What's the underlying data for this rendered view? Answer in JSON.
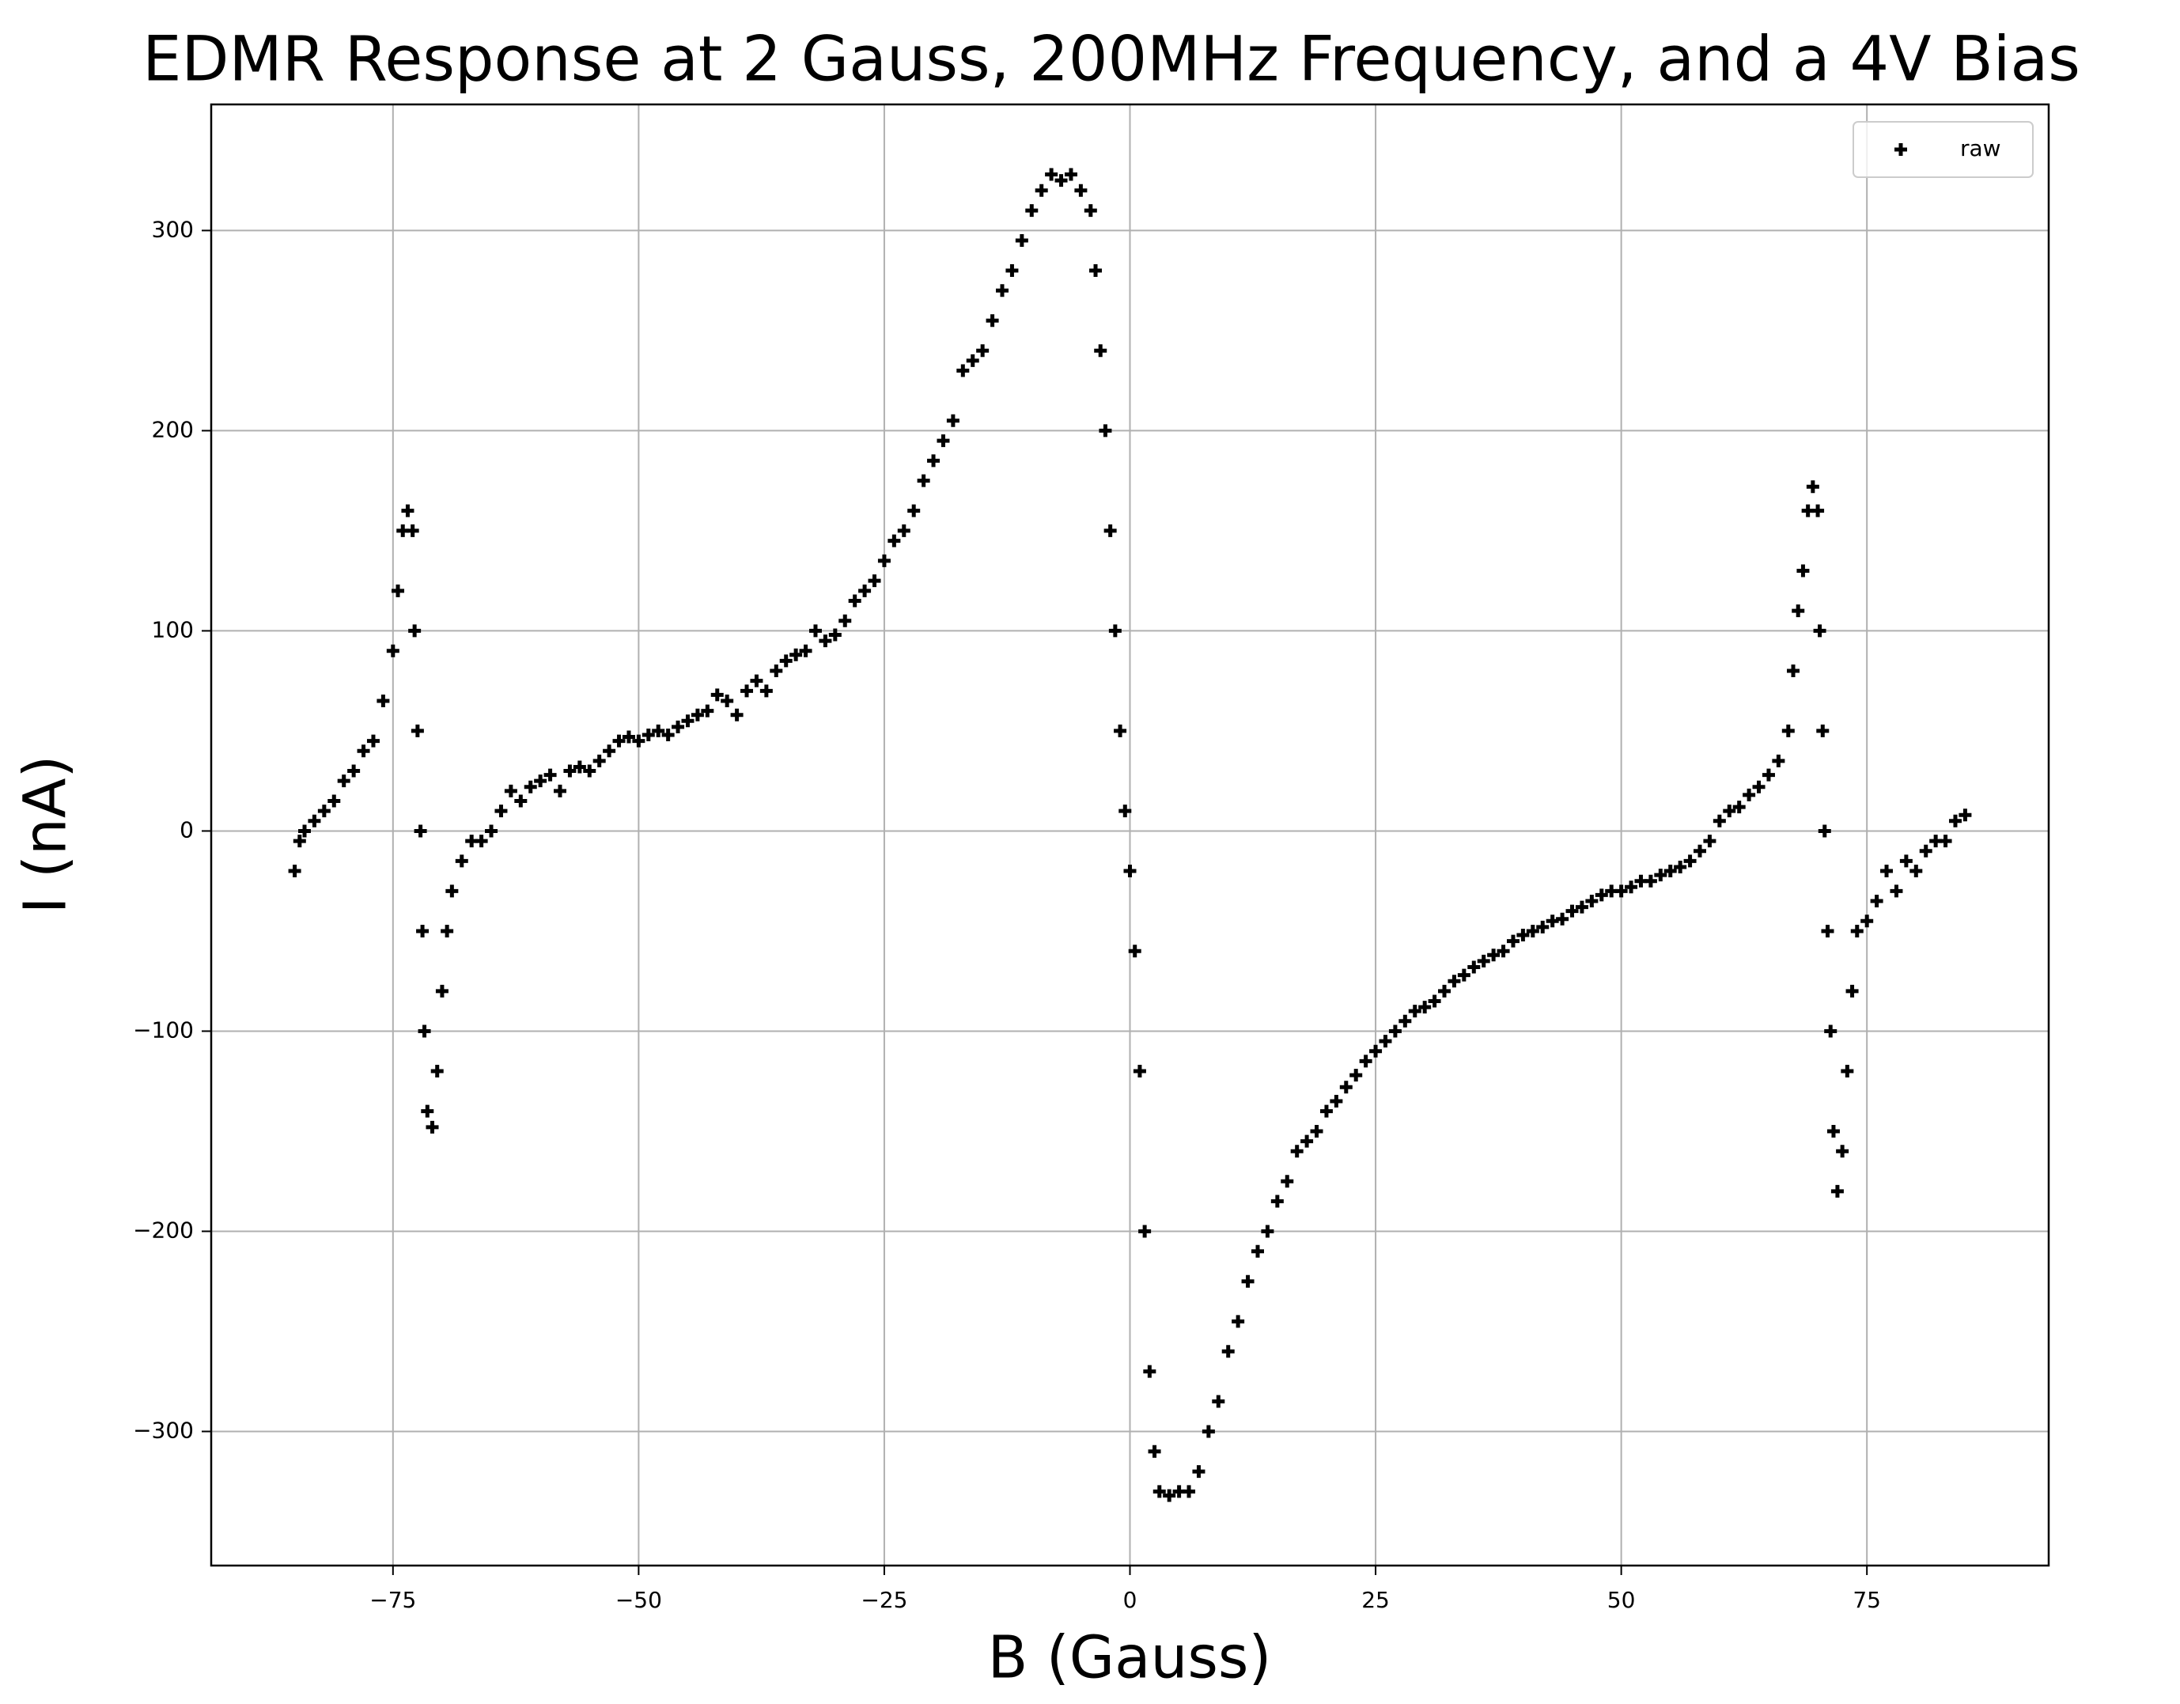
{
  "chart_data": {
    "type": "scatter",
    "title": "EDMR Response at 2 Gauss, 200MHz Frequency, and a 4V Bias",
    "x_label": "B (Gauss)",
    "y_label": "I (nA)",
    "xlim": [
      -93.5,
      93.5
    ],
    "ylim": [
      -367,
      363
    ],
    "xticks": [
      {
        "value": -75,
        "label": "−75"
      },
      {
        "value": -50,
        "label": "−50"
      },
      {
        "value": -25,
        "label": "−25"
      },
      0,
      25,
      50,
      75
    ],
    "yticks": [
      {
        "value": -300,
        "label": "−300"
      },
      {
        "value": -200,
        "label": "−200"
      },
      {
        "value": -100,
        "label": "−100"
      },
      0,
      100,
      200,
      300
    ],
    "grid": true,
    "legend": "upper right",
    "marker": "plus",
    "series": [
      {
        "name": "raw",
        "color": "#000000",
        "x": [
          -85,
          -84.5,
          -84,
          -83,
          -82,
          -81,
          -80,
          -79,
          -78,
          -77,
          -76,
          -75,
          -74.5,
          -74,
          -73.5,
          -73,
          -72.8,
          -72.5,
          -72.2,
          -72,
          -71.8,
          -71.5,
          -71,
          -70.5,
          -70,
          -69.5,
          -69,
          -68,
          -67,
          -66,
          -65,
          -64,
          -63,
          -62,
          -61,
          -60,
          -59,
          -58,
          -57,
          -56,
          -55,
          -54,
          -53,
          -52,
          -51,
          -50,
          -49,
          -48,
          -47,
          -46,
          -45,
          -44,
          -43,
          -42,
          -41,
          -40,
          -39,
          -38,
          -37,
          -36,
          -35,
          -34,
          -33,
          -32,
          -31,
          -30,
          -29,
          -28,
          -27,
          -26,
          -25,
          -24,
          -23,
          -22,
          -21,
          -20,
          -19,
          -18,
          -17,
          -16,
          -15,
          -14,
          -13,
          -12,
          -11,
          -10,
          -9,
          -8,
          -7,
          -6,
          -5,
          -4,
          -3.5,
          -3,
          -2.5,
          -2,
          -1.5,
          -1,
          -0.5,
          0,
          0.5,
          1,
          1.5,
          2,
          2.5,
          3,
          4,
          5,
          6,
          7,
          8,
          9,
          10,
          11,
          12,
          13,
          14,
          15,
          16,
          17,
          18,
          19,
          20,
          21,
          22,
          23,
          24,
          25,
          26,
          27,
          28,
          29,
          30,
          31,
          32,
          33,
          34,
          35,
          36,
          37,
          38,
          39,
          40,
          41,
          42,
          43,
          44,
          45,
          46,
          47,
          48,
          49,
          50,
          51,
          52,
          53,
          54,
          55,
          56,
          57,
          58,
          59,
          60,
          61,
          62,
          63,
          64,
          65,
          66,
          67,
          67.5,
          68,
          68.5,
          69,
          69.5,
          70,
          70.2,
          70.5,
          70.7,
          71,
          71.3,
          71.6,
          72,
          72.5,
          73,
          73.5,
          74,
          75,
          76,
          77,
          78,
          79,
          80,
          81,
          82,
          83,
          84,
          85
        ],
        "values": [
          -20,
          -5,
          0,
          5,
          10,
          15,
          25,
          30,
          40,
          45,
          65,
          90,
          120,
          150,
          160,
          150,
          100,
          50,
          0,
          -50,
          -100,
          -140,
          -148,
          -120,
          -80,
          -50,
          -30,
          -15,
          -5,
          -5,
          0,
          10,
          20,
          15,
          22,
          25,
          28,
          20,
          30,
          32,
          30,
          35,
          40,
          45,
          47,
          45,
          48,
          50,
          48,
          52,
          55,
          58,
          60,
          68,
          65,
          58,
          70,
          75,
          70,
          80,
          85,
          88,
          90,
          100,
          95,
          98,
          105,
          115,
          120,
          125,
          135,
          145,
          150,
          160,
          175,
          185,
          195,
          205,
          230,
          235,
          240,
          255,
          270,
          280,
          295,
          310,
          320,
          328,
          325,
          328,
          320,
          310,
          280,
          240,
          200,
          150,
          100,
          50,
          10,
          -20,
          -60,
          -120,
          -200,
          -270,
          -310,
          -330,
          -332,
          -330,
          -330,
          -320,
          -300,
          -285,
          -260,
          -245,
          -225,
          -210,
          -200,
          -185,
          -175,
          -160,
          -155,
          -150,
          -140,
          -135,
          -128,
          -122,
          -115,
          -110,
          -105,
          -100,
          -95,
          -90,
          -88,
          -85,
          -80,
          -75,
          -72,
          -68,
          -65,
          -62,
          -60,
          -55,
          -52,
          -50,
          -48,
          -45,
          -44,
          -40,
          -38,
          -35,
          -32,
          -30,
          -30,
          -28,
          -25,
          -25,
          -22,
          -20,
          -18,
          -15,
          -10,
          -5,
          5,
          10,
          12,
          18,
          22,
          28,
          35,
          50,
          80,
          110,
          130,
          160,
          172,
          160,
          100,
          50,
          0,
          -50,
          -100,
          -150,
          -180,
          -160,
          -120,
          -80,
          -50,
          -45,
          -35,
          -20,
          -30,
          -15,
          -20,
          -10,
          -5,
          -5,
          5,
          8
        ]
      }
    ]
  }
}
